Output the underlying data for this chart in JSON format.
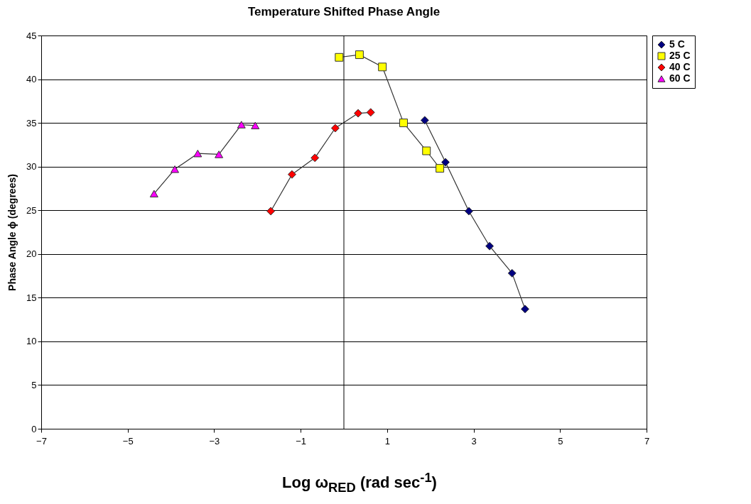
{
  "chart_data": {
    "type": "line",
    "title": "Temperature Shifted Phase Angle",
    "xlabel": "Log ω$_{RED}$ (rad sec$^{-1}$)",
    "ylabel": "Phase Angle ϕ (degrees)",
    "xlim": [
      -7,
      7
    ],
    "xticks": [
      -7,
      -5,
      -3,
      -1,
      1,
      3,
      5,
      7
    ],
    "ylim": [
      0,
      45
    ],
    "yticks": [
      0,
      5,
      10,
      15,
      20,
      25,
      30,
      35,
      40,
      45
    ],
    "grid": "y",
    "legend": "right",
    "line_style": "solid",
    "ref_lines": [
      {
        "axis": "x",
        "value": 0,
        "label": null
      }
    ],
    "series": [
      {
        "name": "5 C",
        "color": "#000080",
        "marker": "diamond",
        "x": [
          1.87,
          2.35,
          2.89,
          3.37,
          3.89,
          4.19
        ],
        "values": [
          35.3,
          30.5,
          24.9,
          20.9,
          17.8,
          13.7
        ]
      },
      {
        "name": "25 C",
        "color": "#ffff00",
        "marker": "square",
        "x": [
          -0.11,
          0.36,
          0.89,
          1.38,
          1.91,
          2.22
        ],
        "values": [
          42.5,
          42.8,
          41.4,
          35.0,
          31.8,
          29.8
        ]
      },
      {
        "name": "40 C",
        "color": "#ff0000",
        "marker": "diamond",
        "x": [
          -1.69,
          -1.2,
          -0.67,
          -0.2,
          0.33,
          0.62
        ],
        "values": [
          24.9,
          29.1,
          31.0,
          34.4,
          36.1,
          36.2
        ]
      },
      {
        "name": "60 C",
        "color": "#ff00ff",
        "marker": "triangle",
        "x": [
          -4.39,
          -3.91,
          -3.38,
          -2.89,
          -2.37,
          -2.05
        ],
        "values": [
          26.9,
          29.7,
          31.5,
          31.4,
          34.8,
          34.7
        ]
      }
    ]
  }
}
